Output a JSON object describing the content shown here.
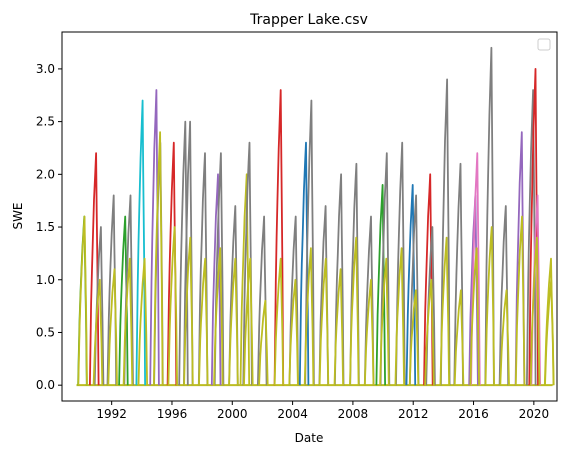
{
  "chart_data": {
    "type": "line",
    "title": "Trapper Lake.csv",
    "xlabel": "Date",
    "ylabel": "SWE",
    "xlim": [
      "1988-09-15",
      "2021-07-15"
    ],
    "ylim": [
      -0.15,
      3.35
    ],
    "x_ticks": [
      "1992",
      "1996",
      "2000",
      "2004",
      "2008",
      "2012",
      "2016",
      "2020"
    ],
    "y_ticks": [
      "0.0",
      "0.5",
      "1.0",
      "1.5",
      "2.0",
      "2.5",
      "3.0"
    ],
    "grid": false,
    "legend": "top-right, empty box",
    "colors": [
      "#1f77b4",
      "#ff7f0e",
      "#2ca02c",
      "#d62728",
      "#9467bd",
      "#8c564b",
      "#e377c2",
      "#7f7f7f",
      "#bcbd22",
      "#17becf"
    ],
    "season_peaks": [
      {
        "x": "1990-03-10",
        "y": 1.6,
        "color": "#2ca02c"
      },
      {
        "x": "1990-12-20",
        "y": 2.2,
        "color": "#d62728"
      },
      {
        "x": "1991-04-15",
        "y": 1.5,
        "color": "#7f7f7f"
      },
      {
        "x": "1992-02-20",
        "y": 1.8,
        "color": "#7f7f7f"
      },
      {
        "x": "1992-11-25",
        "y": 1.6,
        "color": "#2ca02c"
      },
      {
        "x": "1993-04-01",
        "y": 1.8,
        "color": "#7f7f7f"
      },
      {
        "x": "1994-01-20",
        "y": 2.7,
        "color": "#17becf"
      },
      {
        "x": "1994-12-20",
        "y": 2.8,
        "color": "#9467bd"
      },
      {
        "x": "1995-03-25",
        "y": 2.3,
        "color": "#7f7f7f"
      },
      {
        "x": "1996-02-15",
        "y": 2.3,
        "color": "#d62728"
      },
      {
        "x": "1996-11-20",
        "y": 2.5,
        "color": "#7f7f7f"
      },
      {
        "x": "1997-03-15",
        "y": 2.5,
        "color": "#7f7f7f"
      },
      {
        "x": "1998-03-10",
        "y": 2.2,
        "color": "#7f7f7f"
      },
      {
        "x": "1999-01-20",
        "y": 2.0,
        "color": "#9467bd"
      },
      {
        "x": "1999-04-01",
        "y": 2.2,
        "color": "#7f7f7f"
      },
      {
        "x": "2000-03-15",
        "y": 1.7,
        "color": "#7f7f7f"
      },
      {
        "x": "2000-12-15",
        "y": 2.0,
        "color": "#bcbd22"
      },
      {
        "x": "2001-02-20",
        "y": 2.3,
        "color": "#7f7f7f"
      },
      {
        "x": "2002-02-10",
        "y": 1.6,
        "color": "#7f7f7f"
      },
      {
        "x": "2003-03-20",
        "y": 2.8,
        "color": "#d62728"
      },
      {
        "x": "2004-03-15",
        "y": 1.6,
        "color": "#7f7f7f"
      },
      {
        "x": "2004-11-20",
        "y": 2.3,
        "color": "#1f77b4"
      },
      {
        "x": "2005-04-01",
        "y": 2.7,
        "color": "#7f7f7f"
      },
      {
        "x": "2006-03-10",
        "y": 1.7,
        "color": "#7f7f7f"
      },
      {
        "x": "2007-03-20",
        "y": 2.0,
        "color": "#7f7f7f"
      },
      {
        "x": "2008-03-25",
        "y": 2.1,
        "color": "#7f7f7f"
      },
      {
        "x": "2009-03-15",
        "y": 1.6,
        "color": "#7f7f7f"
      },
      {
        "x": "2009-12-20",
        "y": 1.9,
        "color": "#2ca02c"
      },
      {
        "x": "2010-04-01",
        "y": 2.2,
        "color": "#7f7f7f"
      },
      {
        "x": "2011-04-10",
        "y": 2.3,
        "color": "#7f7f7f"
      },
      {
        "x": "2011-12-20",
        "y": 1.9,
        "color": "#1f77b4"
      },
      {
        "x": "2012-03-10",
        "y": 1.8,
        "color": "#7f7f7f"
      },
      {
        "x": "2013-02-15",
        "y": 2.0,
        "color": "#d62728"
      },
      {
        "x": "2013-04-10",
        "y": 1.5,
        "color": "#7f7f7f"
      },
      {
        "x": "2014-04-01",
        "y": 2.9,
        "color": "#7f7f7f"
      },
      {
        "x": "2015-02-20",
        "y": 2.1,
        "color": "#7f7f7f"
      },
      {
        "x": "2016-02-15",
        "y": 1.8,
        "color": "#9467bd"
      },
      {
        "x": "2016-04-01",
        "y": 2.2,
        "color": "#e377c2"
      },
      {
        "x": "2017-03-10",
        "y": 3.2,
        "color": "#7f7f7f"
      },
      {
        "x": "2018-02-20",
        "y": 1.7,
        "color": "#7f7f7f"
      },
      {
        "x": "2019-03-15",
        "y": 2.4,
        "color": "#9467bd"
      },
      {
        "x": "2019-12-15",
        "y": 2.8,
        "color": "#7f7f7f"
      },
      {
        "x": "2020-02-10",
        "y": 3.0,
        "color": "#d62728"
      },
      {
        "x": "2020-04-01",
        "y": 1.8,
        "color": "#e377c2"
      },
      {
        "x": "2021-02-20",
        "y": 1.2,
        "color": "#bcbd22"
      }
    ],
    "overlay_series": [
      {
        "color": "#bcbd22",
        "peaks": [
          {
            "x": "1990-03-15",
            "y": 1.6
          },
          {
            "x": "1991-03-20",
            "y": 1.0
          },
          {
            "x": "1992-03-10",
            "y": 1.1
          },
          {
            "x": "1993-03-15",
            "y": 1.2
          },
          {
            "x": "1994-03-10",
            "y": 1.2
          },
          {
            "x": "1995-03-20",
            "y": 2.4
          },
          {
            "x": "1996-03-05",
            "y": 1.5
          },
          {
            "x": "1997-03-20",
            "y": 1.4
          },
          {
            "x": "1998-03-15",
            "y": 1.2
          },
          {
            "x": "1999-03-15",
            "y": 1.3
          },
          {
            "x": "2000-03-15",
            "y": 1.2
          },
          {
            "x": "2001-03-10",
            "y": 1.2
          },
          {
            "x": "2002-03-10",
            "y": 0.8
          },
          {
            "x": "2003-03-20",
            "y": 1.2
          },
          {
            "x": "2004-03-10",
            "y": 1.0
          },
          {
            "x": "2005-03-20",
            "y": 1.3
          },
          {
            "x": "2006-03-15",
            "y": 1.2
          },
          {
            "x": "2007-03-10",
            "y": 1.1
          },
          {
            "x": "2008-03-20",
            "y": 1.4
          },
          {
            "x": "2009-03-15",
            "y": 1.0
          },
          {
            "x": "2010-03-20",
            "y": 1.2
          },
          {
            "x": "2011-03-25",
            "y": 1.3
          },
          {
            "x": "2012-03-05",
            "y": 0.9
          },
          {
            "x": "2013-03-15",
            "y": 1.0
          },
          {
            "x": "2014-03-20",
            "y": 1.4
          },
          {
            "x": "2015-03-01",
            "y": 0.9
          },
          {
            "x": "2016-03-15",
            "y": 1.3
          },
          {
            "x": "2017-03-15",
            "y": 1.5
          },
          {
            "x": "2018-03-10",
            "y": 0.9
          },
          {
            "x": "2019-03-20",
            "y": 1.6
          },
          {
            "x": "2020-03-15",
            "y": 1.4
          },
          {
            "x": "2021-02-25",
            "y": 1.0
          }
        ]
      }
    ]
  }
}
